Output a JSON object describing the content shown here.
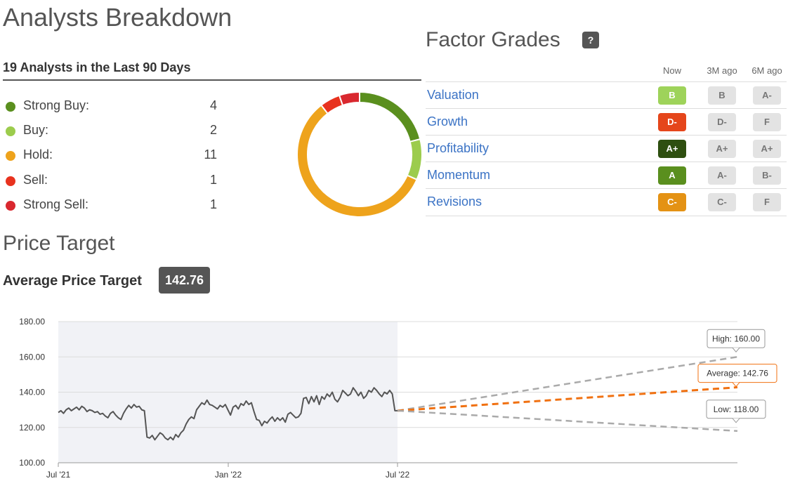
{
  "analysts": {
    "title": "Analysts Breakdown",
    "subtitle": "19 Analysts in the Last 90 Days",
    "ratings": [
      {
        "label": "Strong Buy:",
        "count": "4",
        "color": "#5a8f1e"
      },
      {
        "label": "Buy:",
        "count": "2",
        "color": "#9ccc4d"
      },
      {
        "label": "Hold:",
        "count": "11",
        "color": "#eea31c"
      },
      {
        "label": "Sell:",
        "count": "1",
        "color": "#e8321e"
      },
      {
        "label": "Strong Sell:",
        "count": "1",
        "color": "#d9282f"
      }
    ]
  },
  "factor_grades": {
    "title": "Factor Grades",
    "help_label": "?",
    "columns": [
      "Now",
      "3M ago",
      "6M ago"
    ],
    "rows": [
      {
        "name": "Valuation",
        "now": "B",
        "m3": "B",
        "m6": "A-",
        "now_color": "#9ed35a",
        "now_text": "#fff"
      },
      {
        "name": "Growth",
        "now": "D-",
        "m3": "D-",
        "m6": "F",
        "now_color": "#e5461b",
        "now_text": "#fff"
      },
      {
        "name": "Profitability",
        "now": "A+",
        "m3": "A+",
        "m6": "A+",
        "now_color": "#2e4f10",
        "now_text": "#fff"
      },
      {
        "name": "Momentum",
        "now": "A",
        "m3": "A-",
        "m6": "B-",
        "now_color": "#5a8f1e",
        "now_text": "#fff"
      },
      {
        "name": "Revisions",
        "now": "C-",
        "m3": "C-",
        "m6": "F",
        "now_color": "#e49214",
        "now_text": "#fff"
      }
    ]
  },
  "price_target": {
    "title": "Price Target",
    "avg_label": "Average Price Target",
    "avg_value": "142.76"
  },
  "chart_data": {
    "type": "line",
    "y_ticks": [
      "180.00",
      "160.00",
      "140.00",
      "120.00",
      "100.00"
    ],
    "ylim": [
      100,
      180
    ],
    "x_ticks": [
      "Jul '21",
      "Jan '22",
      "Jul '22"
    ],
    "history": {
      "x_start": "2021-07",
      "x_end": "2022-07",
      "values": [
        128.5,
        129.5,
        128,
        130,
        131,
        129.5,
        130.5,
        131.5,
        130,
        132,
        131,
        129,
        130,
        129.5,
        128.5,
        129,
        127.5,
        128,
        126.5,
        125.5,
        128,
        129,
        127,
        125.5,
        124.5,
        128,
        130.5,
        132.5,
        131,
        133,
        131.5,
        132,
        130,
        129.5,
        114.5,
        114,
        115.5,
        113,
        115,
        117,
        116,
        114,
        113,
        114.5,
        113,
        116,
        114.5,
        117,
        118.5,
        122,
        124.5,
        126,
        125,
        130,
        132,
        134,
        133,
        135.5,
        133,
        132.5,
        131.5,
        130.5,
        132.5,
        131.5,
        133,
        130,
        127,
        131.5,
        132.5,
        130.5,
        133.5,
        132.5,
        135,
        133,
        134,
        129,
        124.5,
        124,
        121,
        123.5,
        122.5,
        124.5,
        126,
        123.5,
        125.5,
        124,
        125.5,
        123,
        127.5,
        128.5,
        127,
        125.5,
        126,
        128,
        136.5,
        137,
        133.5,
        137.5,
        134.5,
        138,
        133,
        137.5,
        136,
        139,
        137.5,
        140,
        136,
        134.5,
        137,
        141,
        139.5,
        138,
        139,
        142.5,
        140.5,
        138,
        140,
        136.5,
        138,
        141,
        140,
        142.5,
        141,
        139,
        137.5,
        140,
        139,
        141,
        139,
        129.5,
        129.5
      ]
    },
    "projections": [
      {
        "name": "High",
        "label": "High: 160.00",
        "end": 160.0,
        "color": "#aaaaaa"
      },
      {
        "name": "Average",
        "label": "Average: 142.76",
        "end": 142.76,
        "color": "#f07010"
      },
      {
        "name": "Low",
        "label": "Low: 118.00",
        "end": 118.0,
        "color": "#aaaaaa"
      }
    ],
    "start_value": 129.5,
    "history_line_color": "#555555",
    "shaded_bg": "#f1f2f6"
  }
}
